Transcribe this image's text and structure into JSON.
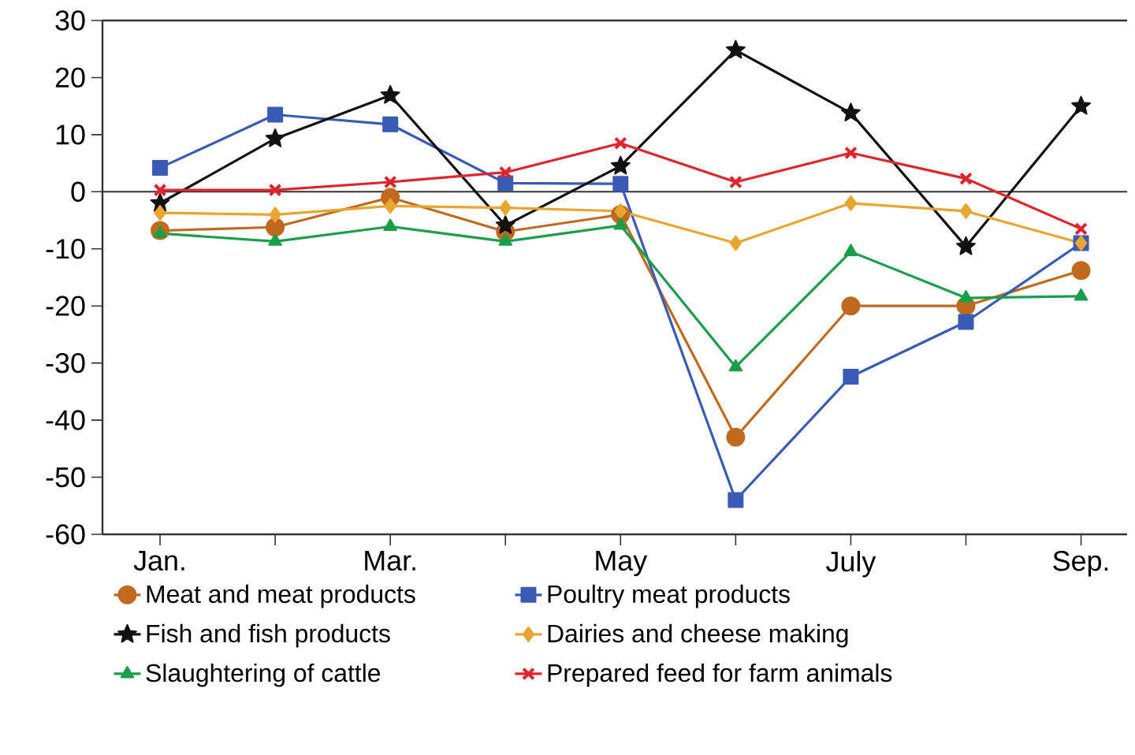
{
  "chart_data": {
    "type": "line",
    "categories": [
      "Jan.",
      null,
      "Mar.",
      null,
      "May",
      null,
      "July",
      null,
      "Sep."
    ],
    "ylim": [
      -60,
      30
    ],
    "yticks": [
      -60,
      -50,
      -40,
      -30,
      -20,
      -10,
      0,
      10,
      20,
      30
    ],
    "legend": "bottom",
    "grid": false,
    "line_style": "solid",
    "ref_lines": [
      {
        "axis": "y",
        "value": 0,
        "color": "#333333"
      }
    ],
    "series": [
      {
        "name": "Meat and meat products",
        "color": "#c06a1e",
        "marker": "circle",
        "values": [
          -6.8,
          -6.2,
          -1,
          -7,
          -4,
          -43,
          -20,
          -20,
          -13.8
        ]
      },
      {
        "name": "Poultry meat products",
        "color": "#3a5bb5",
        "marker": "square",
        "values": [
          4.2,
          13.5,
          11.8,
          1.5,
          1.4,
          -54,
          -32.4,
          -22.8,
          -9
        ]
      },
      {
        "name": "Fish and fish products",
        "color": "#111111",
        "marker": "star",
        "values": [
          -2,
          9.3,
          16.9,
          -5.9,
          4.5,
          24.8,
          13.8,
          -9.6,
          15
        ]
      },
      {
        "name": "Dairies and cheese making",
        "color": "#e8a630",
        "marker": "diamond",
        "values": [
          -3.7,
          -4,
          -2.5,
          -2.8,
          -3.4,
          -9,
          -2,
          -3.4,
          -9
        ]
      },
      {
        "name": "Slaughtering of cattle",
        "color": "#1a9e4a",
        "marker": "triangle",
        "values": [
          -7.3,
          -8.7,
          -6.1,
          -8.7,
          -5.9,
          -30.7,
          -10.5,
          -18.6,
          -18.3
        ]
      },
      {
        "name": "Prepared feed for farm animals",
        "color": "#e0242c",
        "marker": "cross",
        "values": [
          0.3,
          0.3,
          1.7,
          3.4,
          8.5,
          1.7,
          6.8,
          2.3,
          -6.5
        ]
      }
    ]
  }
}
